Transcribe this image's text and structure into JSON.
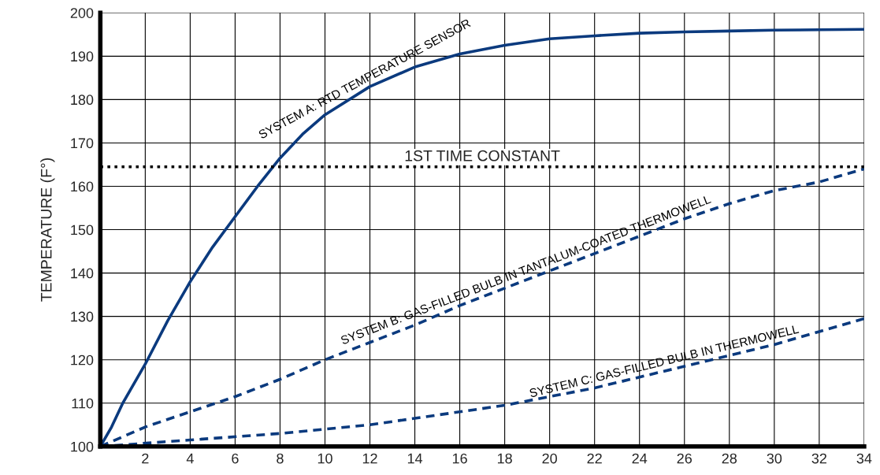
{
  "chart_data": {
    "type": "line",
    "ylabel": "TEMPERATURE (F°)",
    "x": [
      0,
      0.5,
      1,
      2,
      3,
      4,
      5,
      6,
      7,
      8,
      9,
      10,
      12,
      14,
      16,
      18,
      20,
      22,
      24,
      26,
      28,
      30,
      32,
      34
    ],
    "series": [
      {
        "name": "SYSTEM A: RTD TEMPERATURE SENSOR",
        "color": "#0b3a7e",
        "line_style": "solid",
        "values": [
          100,
          104.5,
          110,
          119,
          129,
          138,
          146,
          153,
          160,
          166.5,
          172,
          176.5,
          183,
          187.5,
          190.5,
          192.5,
          194,
          194.7,
          195.3,
          195.6,
          195.8,
          196,
          196.1,
          196.2
        ]
      },
      {
        "name": "SYSTEM B: GAS-FILLED BULB IN TANTALUM-COATED THERMOWELL",
        "color": "#0b3a7e",
        "line_style": "dashed",
        "x": [
          0,
          2,
          4,
          6,
          8,
          10,
          12,
          14,
          16,
          18,
          20,
          22,
          24,
          26,
          28,
          30,
          32,
          34
        ],
        "values": [
          100,
          104.5,
          108,
          111.5,
          115.5,
          120,
          124,
          128,
          132.5,
          136.5,
          140.5,
          144.5,
          148.5,
          152.5,
          156,
          159,
          161,
          164
        ]
      },
      {
        "name": "SYSTEM C: GAS-FILLED BULB IN THERMOWELL",
        "color": "#0b3a7e",
        "line_style": "dashed",
        "x": [
          0,
          4,
          8,
          10,
          12,
          14,
          16,
          18,
          20,
          22,
          24,
          26,
          28,
          30,
          32,
          34
        ],
        "values": [
          100,
          101.5,
          103,
          104,
          105,
          106.5,
          108,
          109.5,
          111.5,
          113.5,
          116,
          118.5,
          121,
          123.5,
          126.5,
          129.5
        ]
      }
    ],
    "ref_lines": [
      {
        "axis": "y",
        "value": 164.5,
        "label": "1ST TIME CONSTANT",
        "line_style": "dotted",
        "color": "#000000"
      }
    ],
    "xlim": [
      0,
      34
    ],
    "xticks": [
      {
        "value": 0,
        "label": null
      },
      2,
      4,
      6,
      8,
      10,
      12,
      14,
      16,
      18,
      20,
      22,
      24,
      26,
      28,
      30,
      32,
      34
    ],
    "ylim": [
      100,
      200
    ],
    "yticks": [
      100,
      110,
      120,
      130,
      140,
      150,
      160,
      170,
      180,
      190,
      200
    ],
    "grid": true,
    "legend": false,
    "marker": "none"
  }
}
